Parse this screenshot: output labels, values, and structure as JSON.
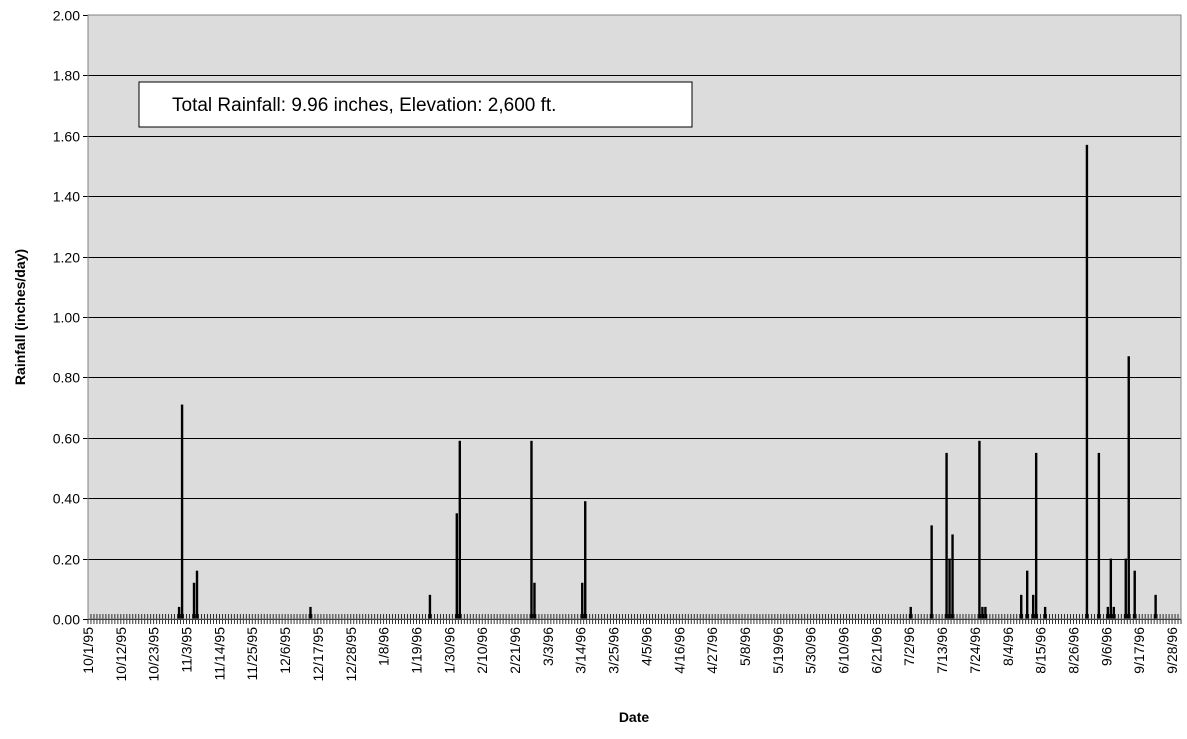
{
  "colors": {
    "plot_background": "#dcdcdc",
    "bar": "#000000",
    "gridline": "#000000",
    "frame": "#808080"
  },
  "chart_data": {
    "type": "bar",
    "xlabel": "Date",
    "ylabel": "Rainfall (inches/day)",
    "annotation": "Total Rainfall: 9.96 inches, Elevation: 2,600 ft.",
    "ylim": [
      0,
      2.0
    ],
    "yticks": [
      "0.00",
      "0.20",
      "0.40",
      "0.60",
      "0.80",
      "1.00",
      "1.20",
      "1.40",
      "1.60",
      "1.80",
      "2.00"
    ],
    "x_start": "10/1/95",
    "x_end": "9/30/96",
    "xtick_labels": [
      "10/1/95",
      "10/12/95",
      "10/23/95",
      "11/3/95",
      "11/14/95",
      "11/25/95",
      "12/6/95",
      "12/17/95",
      "12/28/95",
      "1/8/96",
      "1/19/96",
      "1/30/96",
      "2/10/96",
      "2/21/96",
      "3/3/96",
      "3/14/96",
      "3/25/96",
      "4/5/96",
      "4/16/96",
      "4/27/96",
      "5/8/96",
      "5/19/96",
      "5/30/96",
      "6/10/96",
      "6/21/96",
      "7/2/96",
      "7/13/96",
      "7/24/96",
      "8/4/96",
      "8/15/96",
      "8/26/96",
      "9/6/96",
      "9/17/96",
      "9/28/96"
    ],
    "grid": "horizontal",
    "legend": "none",
    "points": [
      {
        "date": "10/31/95",
        "value": 0.04
      },
      {
        "date": "11/1/95",
        "value": 0.71
      },
      {
        "date": "11/5/95",
        "value": 0.12
      },
      {
        "date": "11/6/95",
        "value": 0.16
      },
      {
        "date": "12/14/95",
        "value": 0.04
      },
      {
        "date": "1/23/96",
        "value": 0.08
      },
      {
        "date": "2/1/96",
        "value": 0.35
      },
      {
        "date": "2/2/96",
        "value": 0.59
      },
      {
        "date": "2/26/96",
        "value": 0.59
      },
      {
        "date": "2/27/96",
        "value": 0.12
      },
      {
        "date": "3/14/96",
        "value": 0.12
      },
      {
        "date": "3/15/96",
        "value": 0.39
      },
      {
        "date": "7/2/96",
        "value": 0.04
      },
      {
        "date": "7/9/96",
        "value": 0.31
      },
      {
        "date": "7/14/96",
        "value": 0.55
      },
      {
        "date": "7/15/96",
        "value": 0.2
      },
      {
        "date": "7/16/96",
        "value": 0.28
      },
      {
        "date": "7/25/96",
        "value": 0.59
      },
      {
        "date": "7/26/96",
        "value": 0.04
      },
      {
        "date": "7/27/96",
        "value": 0.04
      },
      {
        "date": "8/8/96",
        "value": 0.08
      },
      {
        "date": "8/10/96",
        "value": 0.16
      },
      {
        "date": "8/12/96",
        "value": 0.08
      },
      {
        "date": "8/13/96",
        "value": 0.55
      },
      {
        "date": "8/16/96",
        "value": 0.04
      },
      {
        "date": "8/30/96",
        "value": 1.57
      },
      {
        "date": "9/3/96",
        "value": 0.55
      },
      {
        "date": "9/6/96",
        "value": 0.04
      },
      {
        "date": "9/7/96",
        "value": 0.2
      },
      {
        "date": "9/8/96",
        "value": 0.04
      },
      {
        "date": "9/12/96",
        "value": 0.2
      },
      {
        "date": "9/13/96",
        "value": 0.87
      },
      {
        "date": "9/15/96",
        "value": 0.16
      },
      {
        "date": "9/22/96",
        "value": 0.08
      }
    ]
  }
}
